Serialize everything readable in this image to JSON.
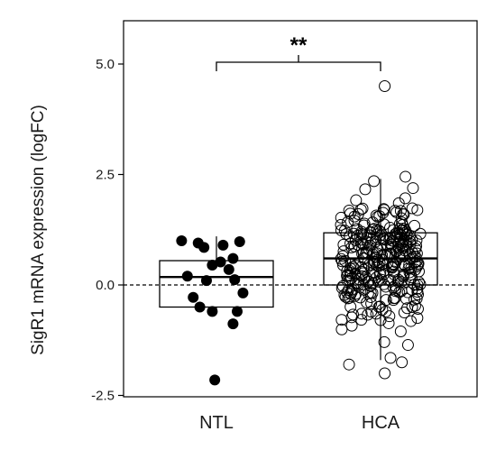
{
  "chart_data": {
    "type": "box",
    "ylabel": "SigR1 mRNA expression (logFC)",
    "categories": [
      "NTL",
      "HCA"
    ],
    "ylim": [
      -2.5,
      6.0
    ],
    "yticks": [
      {
        "value": 5.0,
        "label": "5.0"
      },
      {
        "value": 2.5,
        "label": "2.5"
      },
      {
        "value": 0.0,
        "label": "0.0"
      },
      {
        "value": -2.5,
        "label": "-2.5"
      }
    ],
    "reference_line": {
      "value": 0,
      "style": "dashed"
    },
    "significance": {
      "label": "**",
      "between": [
        "NTL",
        "HCA"
      ],
      "y": 5.0
    },
    "colors": {
      "NTL_points": "#000000",
      "HCA_points": "#ffffff",
      "stroke": "#000000"
    },
    "boxes": [
      {
        "category": "NTL",
        "q1": -0.5,
        "median": 0.18,
        "q3": 0.55,
        "whisker_low": -0.55,
        "whisker_high": 1.1,
        "point_style": "filled"
      },
      {
        "category": "HCA",
        "q1": 0.0,
        "median": 0.6,
        "q3": 1.18,
        "whisker_low": -1.7,
        "whisker_high": 2.4,
        "point_style": "open"
      }
    ],
    "points": {
      "NTL": [
        {
          "x": -0.42,
          "y": 1.0
        },
        {
          "x": -0.22,
          "y": 0.95
        },
        {
          "x": 0.08,
          "y": 0.9
        },
        {
          "x": 0.28,
          "y": 0.98
        },
        {
          "x": -0.15,
          "y": 0.85
        },
        {
          "x": 0.2,
          "y": 0.6
        },
        {
          "x": 0.05,
          "y": 0.52
        },
        {
          "x": -0.05,
          "y": 0.45
        },
        {
          "x": 0.15,
          "y": 0.35
        },
        {
          "x": -0.35,
          "y": 0.2
        },
        {
          "x": -0.12,
          "y": 0.1
        },
        {
          "x": 0.22,
          "y": 0.12
        },
        {
          "x": -0.28,
          "y": -0.28
        },
        {
          "x": 0.32,
          "y": -0.18
        },
        {
          "x": -0.2,
          "y": -0.5
        },
        {
          "x": 0.25,
          "y": -0.6
        },
        {
          "x": -0.05,
          "y": -0.6
        },
        {
          "x": 0.2,
          "y": -0.88
        },
        {
          "x": -0.02,
          "y": -2.15
        }
      ],
      "HCA_extra": [
        {
          "x": 0.05,
          "y": 4.5
        },
        {
          "x": 0.3,
          "y": 2.45
        },
        {
          "x": -0.08,
          "y": 2.35
        },
        {
          "x": 0.05,
          "y": -2.0
        },
        {
          "x": -0.38,
          "y": -1.8
        },
        {
          "x": 0.12,
          "y": -1.65
        }
      ]
    }
  }
}
